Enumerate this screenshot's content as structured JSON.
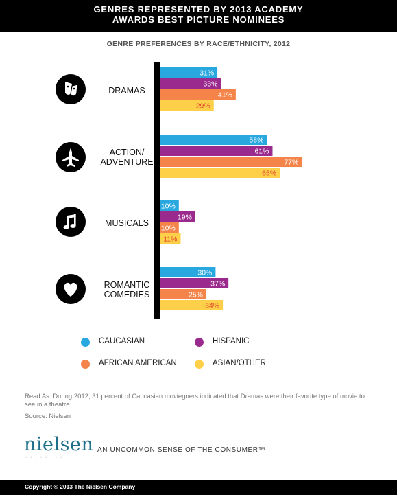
{
  "header": {
    "title_line1": "GENRES REPRESENTED BY 2013 ACADEMY",
    "title_line2": "AWARDS  BEST PICTURE  NOMINEES"
  },
  "chart_data": {
    "type": "bar",
    "orientation": "horizontal",
    "title": "GENRES REPRESENTED BY 2013 ACADEMY AWARDS BEST PICTURE NOMINEES",
    "subtitle": "GENRE PREFERENCES BY RACE/ETHNICITY, 2012",
    "categories": [
      "DRAMAS",
      "ACTION/ ADVENTURE",
      "MUSICALS",
      "ROMANTIC COMEDIES"
    ],
    "category_lines": [
      [
        "DRAMAS"
      ],
      [
        "ACTION/",
        "ADVENTURE"
      ],
      [
        "MUSICALS"
      ],
      [
        "ROMANTIC",
        "COMEDIES"
      ]
    ],
    "category_icons": [
      "theater-masks-icon",
      "fighter-jet-icon",
      "music-note-icon",
      "heart-icon"
    ],
    "series": [
      {
        "name": "CAUCASIAN",
        "color": "#29a8e0",
        "label_color": "#ffffff",
        "values": [
          31,
          58,
          10,
          30
        ],
        "labels": [
          "31%",
          "58%",
          "10%",
          "30%"
        ]
      },
      {
        "name": "HISPANIC",
        "color": "#9b2a8e",
        "label_color": "#ffffff",
        "values": [
          33,
          61,
          19,
          37
        ],
        "labels": [
          "33%",
          "61%",
          "19%",
          "37%"
        ]
      },
      {
        "name": "AFRICAN AMERICAN",
        "color": "#f5844b",
        "label_color": "#ffffff",
        "values": [
          41,
          77,
          10,
          25
        ],
        "labels": [
          "41%",
          "77%",
          "10%",
          "25%"
        ]
      },
      {
        "name": "ASIAN/OTHER",
        "color": "#fed049",
        "label_color": "#e0452e",
        "values": [
          29,
          65,
          11,
          34
        ],
        "labels": [
          "29%",
          "65%",
          "11%",
          "34%"
        ]
      }
    ],
    "xlim": [
      0,
      80
    ],
    "grid": false,
    "legend": "bottom"
  },
  "legend": {
    "items": [
      {
        "label": "CAUCASIAN",
        "color": "#29a8e0"
      },
      {
        "label": "HISPANIC",
        "color": "#9b2a8e"
      },
      {
        "label": "AFRICAN AMERICAN",
        "color": "#f5844b"
      },
      {
        "label": "ASIAN/OTHER",
        "color": "#fed049"
      }
    ]
  },
  "notes": {
    "read_as": "Read As: During 2012, 31 percent of Caucasian moviegoers indicated that Dramas were their favorite type of movie to see in a theatre.",
    "source": "Source: Nielsen"
  },
  "branding": {
    "logo": "nielsen",
    "logo_dots": "••••••••",
    "tagline": "AN UNCOMMON SENSE OF THE CONSUMER™",
    "copyright": "Copyright © 2013 The Nielsen Company"
  }
}
